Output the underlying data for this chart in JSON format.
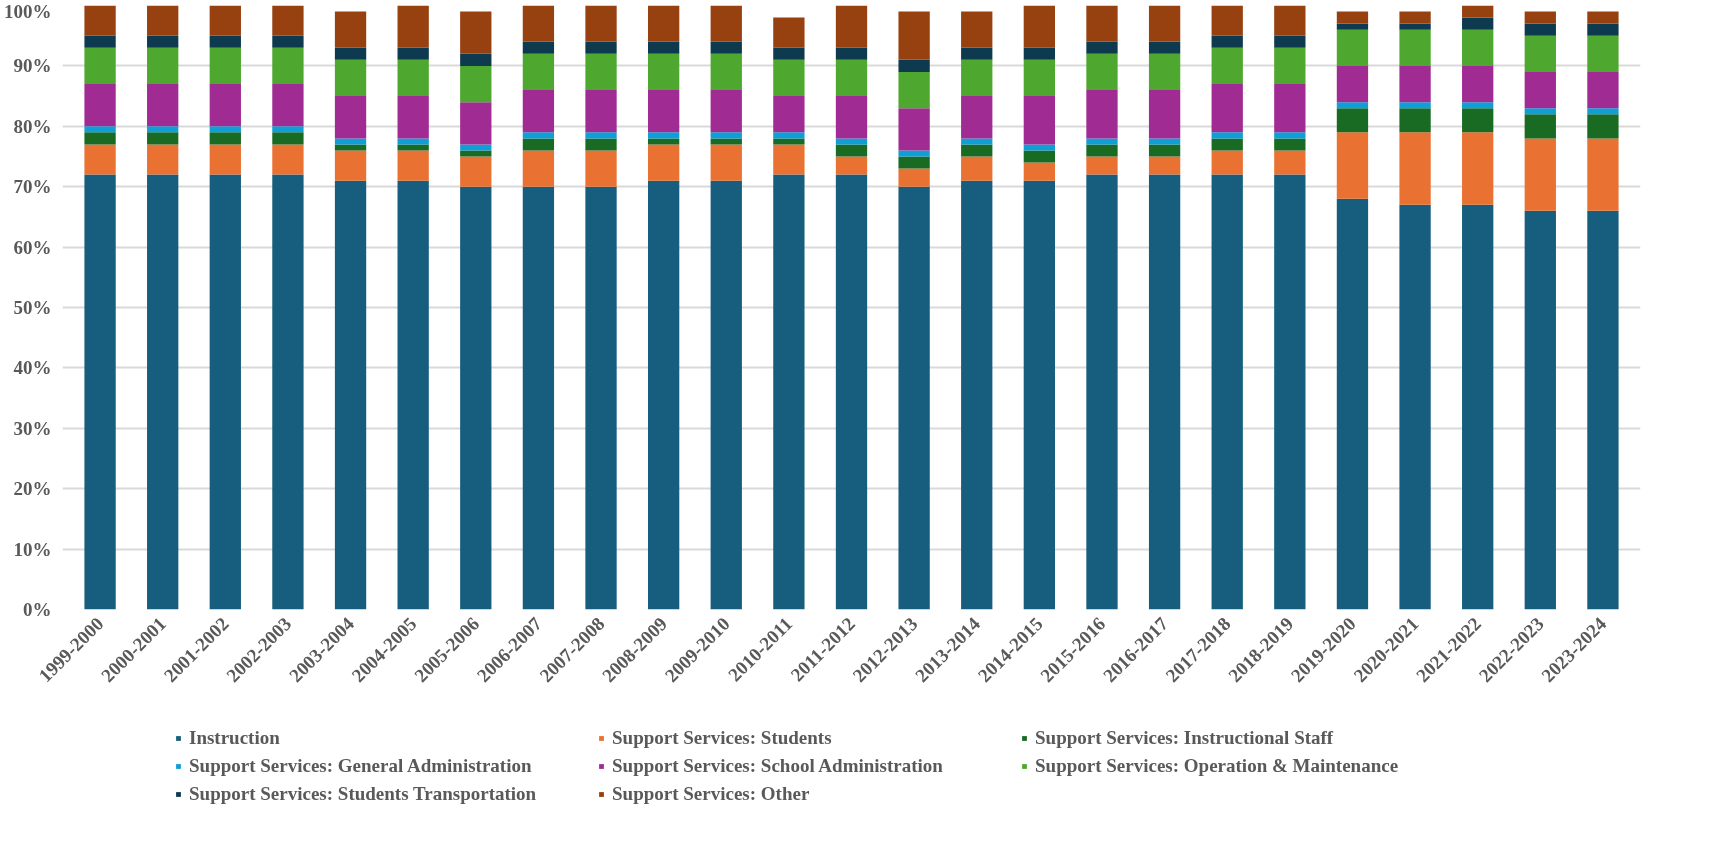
{
  "chart_data": {
    "type": "bar",
    "stacked": true,
    "categories": [
      "1999-2000",
      "2000-2001",
      "2001-2002",
      "2002-2003",
      "2003-2004",
      "2004-2005",
      "2005-2006",
      "2006-2007",
      "2007-2008",
      "2008-2009",
      "2009-2010",
      "2010-2011",
      "2011-2012",
      "2012-2013",
      "2013-2014",
      "2014-2015",
      "2015-2016",
      "2016-2017",
      "2017-2018",
      "2018-2019",
      "2019-2020",
      "2020-2021",
      "2021-2022",
      "2022-2023",
      "2023-2024"
    ],
    "series": [
      {
        "name": "Instruction",
        "color": "#175e7e",
        "values": [
          72,
          72,
          72,
          72,
          71,
          71,
          70,
          70,
          70,
          71,
          71,
          72,
          72,
          70,
          71,
          71,
          72,
          72,
          72,
          72,
          68,
          67,
          67,
          66,
          66
        ]
      },
      {
        "name": "Support Services: Students",
        "color": "#e97132",
        "values": [
          5,
          5,
          5,
          5,
          5,
          5,
          5,
          6,
          6,
          6,
          6,
          5,
          3,
          3,
          4,
          3,
          3,
          3,
          4,
          4,
          11,
          12,
          12,
          12,
          12
        ]
      },
      {
        "name": "Support Services: Instructional Staff",
        "color": "#196b24",
        "values": [
          2,
          2,
          2,
          2,
          1,
          1,
          1,
          2,
          2,
          1,
          1,
          1,
          2,
          2,
          2,
          2,
          2,
          2,
          2,
          2,
          4,
          4,
          4,
          4,
          4
        ]
      },
      {
        "name": "Support Services: General Administration",
        "color": "#0f9ed5",
        "values": [
          1,
          1,
          1,
          1,
          1,
          1,
          1,
          1,
          1,
          1,
          1,
          1,
          1,
          1,
          1,
          1,
          1,
          1,
          1,
          1,
          1,
          1,
          1,
          1,
          1
        ]
      },
      {
        "name": "Support Services: School Administration",
        "color": "#a02b93",
        "values": [
          7,
          7,
          7,
          7,
          7,
          7,
          7,
          7,
          7,
          7,
          7,
          6,
          7,
          7,
          7,
          8,
          8,
          8,
          8,
          8,
          6,
          6,
          6,
          6,
          6
        ]
      },
      {
        "name": "Support Services: Operation & Maintenance",
        "color": "#4ea72e",
        "values": [
          6,
          6,
          6,
          6,
          6,
          6,
          6,
          6,
          6,
          6,
          6,
          6,
          6,
          6,
          6,
          6,
          6,
          6,
          6,
          6,
          6,
          6,
          6,
          6,
          6
        ]
      },
      {
        "name": "Support Services: Students Transportation",
        "color": "#0e3a50",
        "values": [
          2,
          2,
          2,
          2,
          2,
          2,
          2,
          2,
          2,
          2,
          2,
          2,
          2,
          2,
          2,
          2,
          2,
          2,
          2,
          2,
          1,
          1,
          2,
          2,
          2
        ]
      },
      {
        "name": "Support Services: Other",
        "color": "#974010",
        "values": [
          5,
          5,
          5,
          5,
          6,
          7,
          7,
          6,
          6,
          6,
          6,
          5,
          7,
          8,
          6,
          7,
          6,
          6,
          5,
          5,
          2,
          2,
          2,
          2,
          2
        ]
      }
    ],
    "ylim": [
      0,
      100
    ],
    "yticks": [
      {
        "value": 0,
        "label": "0%"
      },
      {
        "value": 10,
        "label": "10%"
      },
      {
        "value": 20,
        "label": "20%"
      },
      {
        "value": 30,
        "label": "30%"
      },
      {
        "value": 40,
        "label": "40%"
      },
      {
        "value": 50,
        "label": "50%"
      },
      {
        "value": 60,
        "label": "60%"
      },
      {
        "value": 70,
        "label": "70%"
      },
      {
        "value": 80,
        "label": "80%"
      },
      {
        "value": 90,
        "label": "90%"
      },
      {
        "value": 100,
        "label": "100%"
      }
    ],
    "grid": "y",
    "legend": "bottom"
  }
}
